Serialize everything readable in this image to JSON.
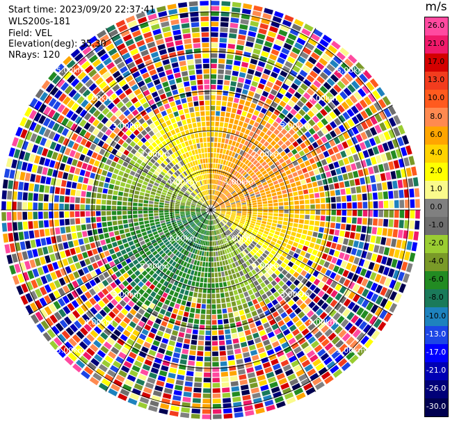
{
  "header": {
    "start_time": "Start time: 2023/09/20 22:37:41",
    "instrument": "WLS200s-181",
    "field": "Field: VEL",
    "elevation": "Elevation(deg): 35.30",
    "nrays": "NRays: 120"
  },
  "chart_data": {
    "type": "heatmap",
    "projection": "polar-ppi",
    "n_rays": 120,
    "range_rings_km": [
      1.0,
      2.0,
      3.0,
      4.0,
      5.0
    ],
    "ring_labels": [
      "1.00km",
      "2.00km",
      "3.00km",
      "4.00km",
      "5.00km"
    ],
    "max_range_km": 5.3,
    "grid": true,
    "colorbar": {
      "unit": "m/s",
      "placement": "right",
      "ticks": [
        "26.0",
        "21.0",
        "17.0",
        "13.0",
        "10.0",
        "8.0",
        "6.0",
        "4.0",
        "2.0",
        "1.0",
        "0.0",
        "-1.0",
        "-2.0",
        "-4.0",
        "-6.0",
        "-8.0",
        "-10.0",
        "-13.0",
        "-17.0",
        "-21.0",
        "-26.0",
        "-30.0"
      ],
      "colors": [
        "#ff4aa0",
        "#f0196a",
        "#d40000",
        "#f23c1e",
        "#ff5a1e",
        "#ff8a50",
        "#ffa500",
        "#ffd300",
        "#ffff00",
        "#fafa8c",
        "#808080",
        "#6e6e6e",
        "#9acd32",
        "#7a9a28",
        "#228b22",
        "#1a7a5a",
        "#1e82be",
        "#1c46e6",
        "#0000ff",
        "#0000b4",
        "#000078",
        "#000050"
      ]
    },
    "field_pattern": [
      {
        "region": "north-east near range",
        "velocity": "2 to 10 m/s"
      },
      {
        "region": "north near range",
        "velocity": "2 to 4 m/s"
      },
      {
        "region": "south-west near range",
        "velocity": "-2 to -8 m/s"
      },
      {
        "region": "beyond 3 km",
        "velocity": "noise, all values"
      }
    ]
  }
}
